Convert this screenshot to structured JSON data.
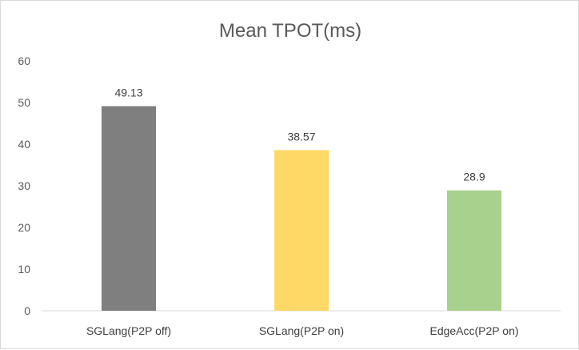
{
  "chart_data": {
    "type": "bar",
    "title": "Mean TPOT(ms)",
    "xlabel": "",
    "ylabel": "",
    "categories": [
      "SGLang(P2P off)",
      "SGLang(P2P on)",
      "EdgeAcc(P2P on)"
    ],
    "values": [
      49.13,
      38.57,
      28.9
    ],
    "data_labels": [
      "49.13",
      "38.57",
      "28.9"
    ],
    "colors": [
      "#7f7f7f",
      "#ffd966",
      "#a9d18e"
    ],
    "ylim": [
      0,
      60
    ],
    "yticks": [
      0,
      10,
      20,
      30,
      40,
      50,
      60
    ],
    "grid": false,
    "legend": "none"
  }
}
